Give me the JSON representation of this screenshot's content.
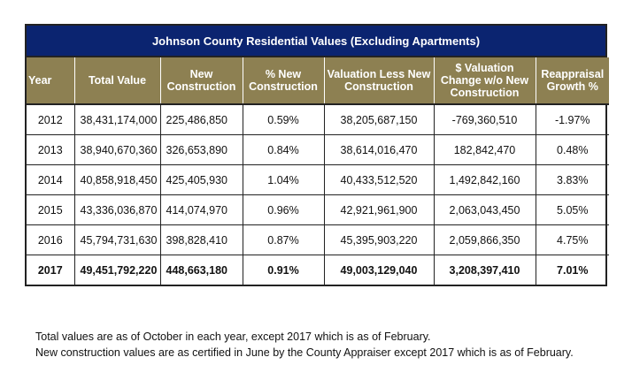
{
  "title": "Johnson County Residential Values (Excluding Apartments)",
  "columns": [
    "Year",
    "Total Value",
    "New Construction",
    "% New Construction",
    "Valuation Less New Construction",
    "$ Valuation Change w/o New Construction",
    "Reappraisal Growth %"
  ],
  "rows": [
    [
      "2012",
      "38,431,174,000",
      "225,486,850",
      "0.59%",
      "38,205,687,150",
      "-769,360,510",
      "-1.97%"
    ],
    [
      "2013",
      "38,940,670,360",
      "326,653,890",
      "0.84%",
      "38,614,016,470",
      "182,842,470",
      "0.48%"
    ],
    [
      "2014",
      "40,858,918,450",
      "425,405,930",
      "1.04%",
      "40,433,512,520",
      "1,492,842,160",
      "3.83%"
    ],
    [
      "2015",
      "43,336,036,870",
      "414,074,970",
      "0.96%",
      "42,921,961,900",
      "2,063,043,450",
      "5.05%"
    ],
    [
      "2016",
      "45,794,731,630",
      "398,828,410",
      "0.87%",
      "45,395,903,220",
      "2,059,866,350",
      "4.75%"
    ],
    [
      "2017",
      "49,451,792,220",
      "448,663,180",
      "0.91%",
      "49,003,129,040",
      "3,208,397,410",
      "7.01%"
    ]
  ],
  "notes": [
    "Total values are as of October in each year, except 2017 which is as of February.",
    "New construction values are as certified in June by the County Appraiser except 2017 which is as of February."
  ],
  "colors": {
    "title_bg": "#0b2470",
    "header_bg": "#8d8052"
  }
}
